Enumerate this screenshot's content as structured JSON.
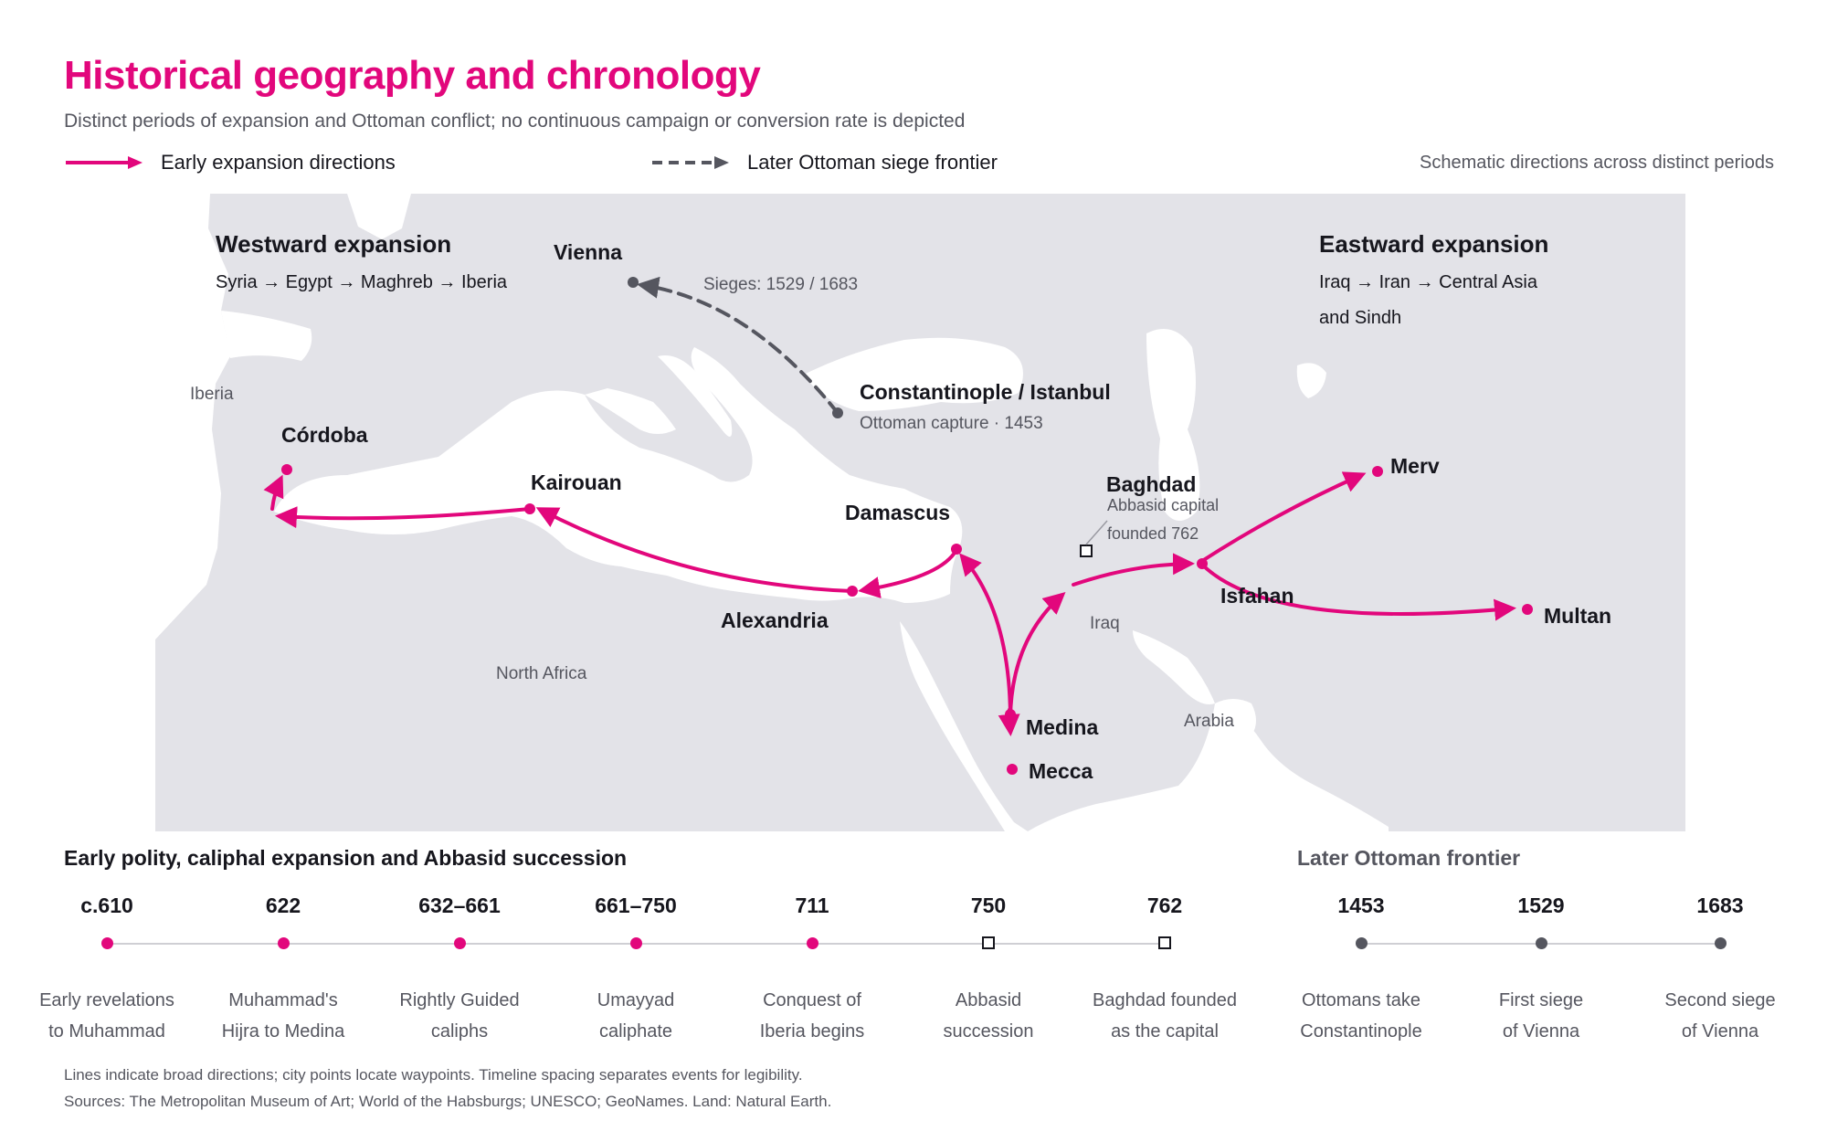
{
  "header": {
    "title": "Historical geography and chronology",
    "subtitle": "Distinct periods of expansion and Ottoman conflict; no continuous campaign or conversion rate is depicted"
  },
  "legend": {
    "early": "Early expansion directions",
    "ottoman": "Later Ottoman siege frontier",
    "note": "Schematic directions across distinct periods"
  },
  "colors": {
    "accent": "#e2077c",
    "ottoman": "#55565f",
    "land": "#e3e3e8",
    "sea": "#ffffff",
    "text": "#16161d",
    "muted": "#55565f"
  },
  "map": {
    "west_panel": {
      "title": "Westward expansion",
      "route": "Syria → Egypt → Maghreb → Iberia"
    },
    "east_panel": {
      "title": "Eastward expansion",
      "route_line1": "Iraq → Iran → Central Asia",
      "route_line2": "and Sindh"
    },
    "regions": {
      "iberia": "Iberia",
      "north_africa": "North Africa",
      "iraq": "Iraq",
      "arabia": "Arabia"
    },
    "cities": {
      "cordoba": "Córdoba",
      "kairouan": "Kairouan",
      "alexandria": "Alexandria",
      "damascus": "Damascus",
      "baghdad": "Baghdad",
      "isfahan": "Isfahan",
      "merv": "Merv",
      "multan": "Multan",
      "medina": "Medina",
      "mecca": "Mecca",
      "vienna": "Vienna",
      "constantinople": "Constantinople / Istanbul"
    },
    "annotations": {
      "baghdad_line1": "Abbasid capital",
      "baghdad_line2": "founded 762",
      "constantinople": "Ottoman capture · 1453",
      "sieges": "Sieges: 1529 / 1683"
    }
  },
  "timeline": {
    "early_heading": "Early polity, caliphal expansion and Abbasid succession",
    "later_heading": "Later Ottoman frontier",
    "events": [
      {
        "year": "c.610",
        "line1": "Early revelations",
        "line2": "to Muhammad",
        "marker": "dot-pink"
      },
      {
        "year": "622",
        "line1": "Muhammad's",
        "line2": "Hijra to Medina",
        "marker": "dot-pink"
      },
      {
        "year": "632–661",
        "line1": "Rightly Guided",
        "line2": "caliphs",
        "marker": "dot-pink"
      },
      {
        "year": "661–750",
        "line1": "Umayyad",
        "line2": "caliphate",
        "marker": "dot-pink"
      },
      {
        "year": "711",
        "line1": "Conquest of",
        "line2": "Iberia begins",
        "marker": "dot-pink"
      },
      {
        "year": "750",
        "line1": "Abbasid",
        "line2": "succession",
        "marker": "square"
      },
      {
        "year": "762",
        "line1": "Baghdad founded",
        "line2": "as the capital",
        "marker": "square"
      },
      {
        "year": "1453",
        "line1": "Ottomans take",
        "line2": "Constantinople",
        "marker": "dot-gray"
      },
      {
        "year": "1529",
        "line1": "First siege",
        "line2": "of Vienna",
        "marker": "dot-gray"
      },
      {
        "year": "1683",
        "line1": "Second siege",
        "line2": "of Vienna",
        "marker": "dot-gray"
      }
    ]
  },
  "footer": {
    "note": "Lines indicate broad directions; city points locate waypoints. Timeline spacing separates events for legibility.",
    "sources": "Sources: The Metropolitan Museum of Art; World of the Habsburgs; UNESCO; GeoNames. Land: Natural Earth."
  }
}
